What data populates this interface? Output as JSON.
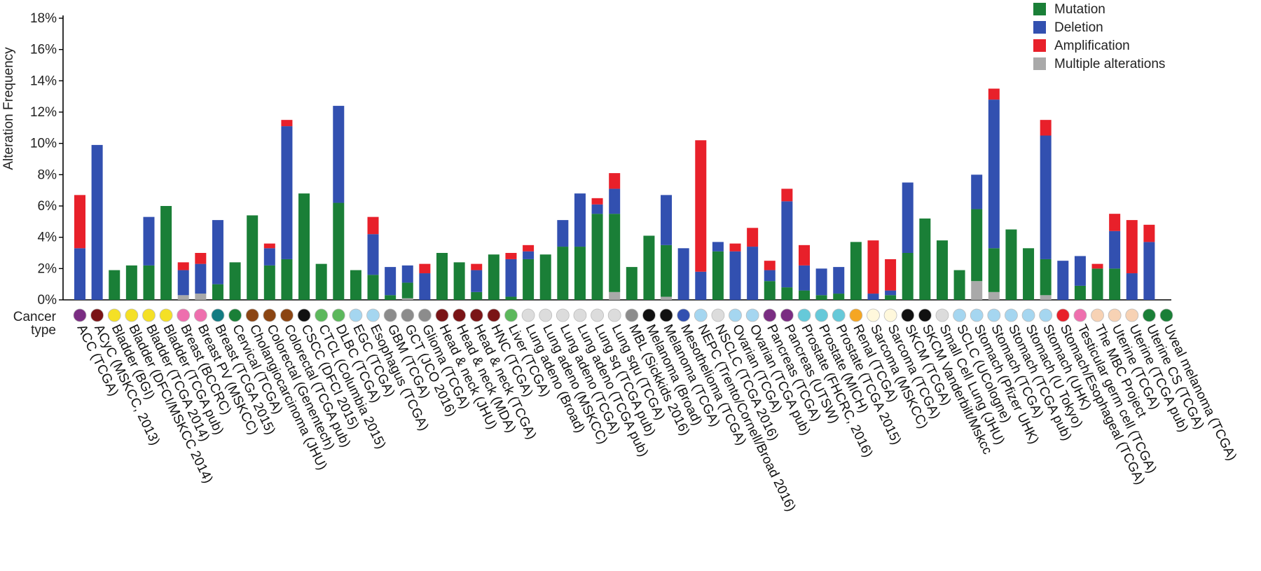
{
  "chart_data": {
    "type": "bar",
    "stacked": true,
    "ylabel": "Alteration Frequency",
    "yunit": "%",
    "ylim": [
      0,
      18
    ],
    "yticks": [
      0,
      2,
      4,
      6,
      8,
      10,
      12,
      14,
      16,
      18
    ],
    "ytick_labels": [
      "0%",
      "2%",
      "4%",
      "6%",
      "8%",
      "10%",
      "12%",
      "14%",
      "16%",
      "18%"
    ],
    "cancer_type_label": [
      "Cancer",
      "type"
    ],
    "legend_position": "top-right",
    "series": [
      {
        "name": "Mutation",
        "color": "#1a7f37"
      },
      {
        "name": "Deletion",
        "color": "#3250b0"
      },
      {
        "name": "Amplification",
        "color": "#e8202a"
      },
      {
        "name": "Multiple alterations",
        "color": "#a9a9a9"
      }
    ],
    "categories": [
      {
        "label": "ACC (TCGA)",
        "dot": "#7a2d82",
        "mutation": 0,
        "deletion": 3.3,
        "amplification": 3.4,
        "multiple": 0
      },
      {
        "label": "ACyC (MSKCC, 2013)",
        "dot": "#7a1416",
        "mutation": 0,
        "deletion": 9.9,
        "amplification": 0,
        "multiple": 0
      },
      {
        "label": "Bladder (BGI)",
        "dot": "#f4e026",
        "mutation": 1.9,
        "deletion": 0,
        "amplification": 0,
        "multiple": 0
      },
      {
        "label": "Bladder (DFCI/MSKCC 2014)",
        "dot": "#f4e026",
        "mutation": 2.2,
        "deletion": 0,
        "amplification": 0,
        "multiple": 0
      },
      {
        "label": "Bladder (TCGA 2014)",
        "dot": "#f4e026",
        "mutation": 2.2,
        "deletion": 3.1,
        "amplification": 0,
        "multiple": 0
      },
      {
        "label": "Bladder (TCGA pub)",
        "dot": "#f4e026",
        "mutation": 6.0,
        "deletion": 0,
        "amplification": 0,
        "multiple": 0
      },
      {
        "label": "Breast (BCCRC)",
        "dot": "#ee6fae",
        "mutation": 0,
        "deletion": 1.6,
        "amplification": 0.5,
        "multiple": 0.3
      },
      {
        "label": "Breast PV (MSKCC)",
        "dot": "#ee6fae",
        "mutation": 0,
        "deletion": 1.9,
        "amplification": 0.7,
        "multiple": 0.4
      },
      {
        "label": "Breast (TCGA 2015)",
        "dot": "#137b82",
        "mutation": 1.0,
        "deletion": 4.1,
        "amplification": 0,
        "multiple": 0
      },
      {
        "label": "Cervical (TCGA)",
        "dot": "#1a7f37",
        "mutation": 2.4,
        "deletion": 0,
        "amplification": 0,
        "multiple": 0
      },
      {
        "label": "Cholangiocarcinoma (JHU)",
        "dot": "#8b4513",
        "mutation": 5.4,
        "deletion": 0,
        "amplification": 0,
        "multiple": 0
      },
      {
        "label": "Colorectal (Genentech)",
        "dot": "#8b4513",
        "mutation": 2.2,
        "deletion": 1.1,
        "amplification": 0.3,
        "multiple": 0
      },
      {
        "label": "Colorectal (TCGA pub)",
        "dot": "#8b4513",
        "mutation": 2.6,
        "deletion": 8.5,
        "amplification": 0.4,
        "multiple": 0
      },
      {
        "label": "CSCC (DFCI 2015)",
        "dot": "#111111",
        "mutation": 6.8,
        "deletion": 0,
        "amplification": 0,
        "multiple": 0
      },
      {
        "label": "CTCL (Columbia 2015)",
        "dot": "#5cb85c",
        "mutation": 2.3,
        "deletion": 0,
        "amplification": 0,
        "multiple": 0
      },
      {
        "label": "DLBC (TCGA)",
        "dot": "#5cb85c",
        "mutation": 6.2,
        "deletion": 6.2,
        "amplification": 0,
        "multiple": 0
      },
      {
        "label": "EGC (TCGA)",
        "dot": "#a5d6f0",
        "mutation": 1.9,
        "deletion": 0,
        "amplification": 0,
        "multiple": 0
      },
      {
        "label": "Esophagus (TCGA)",
        "dot": "#a5d6f0",
        "mutation": 1.6,
        "deletion": 2.6,
        "amplification": 1.1,
        "multiple": 0
      },
      {
        "label": "GBM (TCGA)",
        "dot": "#8c8c8c",
        "mutation": 0.3,
        "deletion": 1.8,
        "amplification": 0,
        "multiple": 0
      },
      {
        "label": "GCT (JCO 2016)",
        "dot": "#8c8c8c",
        "mutation": 1.0,
        "deletion": 1.1,
        "amplification": 0,
        "multiple": 0.1
      },
      {
        "label": "Glioma (TCGA)",
        "dot": "#8c8c8c",
        "mutation": 0,
        "deletion": 1.7,
        "amplification": 0.6,
        "multiple": 0
      },
      {
        "label": "Head & neck (JHU)",
        "dot": "#7a1416",
        "mutation": 3.0,
        "deletion": 0,
        "amplification": 0,
        "multiple": 0
      },
      {
        "label": "Head & neck (MDA)",
        "dot": "#7a1416",
        "mutation": 2.4,
        "deletion": 0,
        "amplification": 0,
        "multiple": 0
      },
      {
        "label": "Head & neck (TCGA)",
        "dot": "#7a1416",
        "mutation": 0.5,
        "deletion": 1.4,
        "amplification": 0.4,
        "multiple": 0
      },
      {
        "label": "HNC (TCGA)",
        "dot": "#7a1416",
        "mutation": 2.9,
        "deletion": 0,
        "amplification": 0,
        "multiple": 0
      },
      {
        "label": "Liver (TCGA)",
        "dot": "#5cb85c",
        "mutation": 0.2,
        "deletion": 2.4,
        "amplification": 0.4,
        "multiple": 0
      },
      {
        "label": "Lung adeno (Broad)",
        "dot": "#dcdcdc",
        "mutation": 2.6,
        "deletion": 0.5,
        "amplification": 0.4,
        "multiple": 0
      },
      {
        "label": "Lung adeno (MSKCC)",
        "dot": "#dcdcdc",
        "mutation": 2.9,
        "deletion": 0,
        "amplification": 0,
        "multiple": 0
      },
      {
        "label": "Lung adeno (TCGA)",
        "dot": "#dcdcdc",
        "mutation": 3.4,
        "deletion": 1.7,
        "amplification": 0,
        "multiple": 0
      },
      {
        "label": "Lung adeno (TCGA pub)",
        "dot": "#dcdcdc",
        "mutation": 3.4,
        "deletion": 3.4,
        "amplification": 0,
        "multiple": 0
      },
      {
        "label": "Lung sq (TCGA pub)",
        "dot": "#dcdcdc",
        "mutation": 5.5,
        "deletion": 0.6,
        "amplification": 0.4,
        "multiple": 0
      },
      {
        "label": "Lung squ (TCGA)",
        "dot": "#dcdcdc",
        "mutation": 5.0,
        "deletion": 1.6,
        "amplification": 1.0,
        "multiple": 0.5
      },
      {
        "label": "MBL (Sickkids 2016)",
        "dot": "#8c8c8c",
        "mutation": 2.1,
        "deletion": 0,
        "amplification": 0,
        "multiple": 0
      },
      {
        "label": "Melanoma (Broad)",
        "dot": "#111111",
        "mutation": 4.1,
        "deletion": 0,
        "amplification": 0,
        "multiple": 0
      },
      {
        "label": "Melanoma (TCGA)",
        "dot": "#111111",
        "mutation": 3.3,
        "deletion": 3.2,
        "amplification": 0,
        "multiple": 0.2
      },
      {
        "label": "Mesothelioma (TCGA)",
        "dot": "#3250b0",
        "mutation": 0,
        "deletion": 3.3,
        "amplification": 0,
        "multiple": 0
      },
      {
        "label": "NEPC (Trento/Cornell/Broad 2016)",
        "dot": "#a5d6f0",
        "mutation": 0,
        "deletion": 1.8,
        "amplification": 8.4,
        "multiple": 0
      },
      {
        "label": "NSCLC (TCGA 2016)",
        "dot": "#dcdcdc",
        "mutation": 3.1,
        "deletion": 0.6,
        "amplification": 0,
        "multiple": 0
      },
      {
        "label": "Ovarian (TCGA)",
        "dot": "#a5d6f0",
        "mutation": 0,
        "deletion": 3.1,
        "amplification": 0.5,
        "multiple": 0
      },
      {
        "label": "Ovarian (TCGA pub)",
        "dot": "#a5d6f0",
        "mutation": 0,
        "deletion": 3.4,
        "amplification": 1.2,
        "multiple": 0
      },
      {
        "label": "Pancreas (TCGA)",
        "dot": "#7a2d82",
        "mutation": 1.2,
        "deletion": 0.7,
        "amplification": 0.6,
        "multiple": 0
      },
      {
        "label": "Pancreas (UTSW)",
        "dot": "#7a2d82",
        "mutation": 0.8,
        "deletion": 5.5,
        "amplification": 0.8,
        "multiple": 0
      },
      {
        "label": "Prostate (FHCRC, 2016)",
        "dot": "#66c9d9",
        "mutation": 0.6,
        "deletion": 1.6,
        "amplification": 1.3,
        "multiple": 0
      },
      {
        "label": "Prostate (MICH)",
        "dot": "#66c9d9",
        "mutation": 0.3,
        "deletion": 1.7,
        "amplification": 0,
        "multiple": 0
      },
      {
        "label": "Prostate (TCGA 2015)",
        "dot": "#66c9d9",
        "mutation": 0.4,
        "deletion": 1.7,
        "amplification": 0,
        "multiple": 0
      },
      {
        "label": "Renal (TCGA)",
        "dot": "#f5a623",
        "mutation": 3.7,
        "deletion": 0,
        "amplification": 0,
        "multiple": 0
      },
      {
        "label": "Sarcoma (MSKCC)",
        "dot": "#fff8dc",
        "mutation": 0,
        "deletion": 0.4,
        "amplification": 3.4,
        "multiple": 0
      },
      {
        "label": "Sarcoma (TCGA)",
        "dot": "#fff8dc",
        "mutation": 0.3,
        "deletion": 0.3,
        "amplification": 2.0,
        "multiple": 0
      },
      {
        "label": "SKCM (TCGA)",
        "dot": "#111111",
        "mutation": 3.0,
        "deletion": 4.5,
        "amplification": 0,
        "multiple": 0
      },
      {
        "label": "SKCM Vanderbilt/Mskcc",
        "dot": "#111111",
        "mutation": 5.2,
        "deletion": 0,
        "amplification": 0,
        "multiple": 0
      },
      {
        "label": "Small Cell Lung (JHU)",
        "dot": "#dcdcdc",
        "mutation": 3.8,
        "deletion": 0,
        "amplification": 0,
        "multiple": 0
      },
      {
        "label": "SCLC (UCologne)",
        "dot": "#a5d6f0",
        "mutation": 1.9,
        "deletion": 0,
        "amplification": 0,
        "multiple": 0
      },
      {
        "label": "Stomach (Pfizer UHK)",
        "dot": "#a5d6f0",
        "mutation": 4.6,
        "deletion": 2.2,
        "amplification": 0,
        "multiple": 1.2
      },
      {
        "label": "Stomach (TCGA)",
        "dot": "#a5d6f0",
        "mutation": 2.8,
        "deletion": 9.5,
        "amplification": 0.7,
        "multiple": 0.5
      },
      {
        "label": "Stomach (TCGA pub)",
        "dot": "#a5d6f0",
        "mutation": 4.5,
        "deletion": 0,
        "amplification": 0,
        "multiple": 0
      },
      {
        "label": "Stomach (U Tokyo)",
        "dot": "#a5d6f0",
        "mutation": 3.3,
        "deletion": 0,
        "amplification": 0,
        "multiple": 0
      },
      {
        "label": "Stomach (UHK)",
        "dot": "#a5d6f0",
        "mutation": 2.3,
        "deletion": 7.9,
        "amplification": 1.0,
        "multiple": 0.3
      },
      {
        "label": "Stomach/Esophageal (TCGA)",
        "dot": "#e8202a",
        "mutation": 0,
        "deletion": 2.5,
        "amplification": 0,
        "multiple": 0
      },
      {
        "label": "Testicular germ cell (TCGA)",
        "dot": "#ee6fae",
        "mutation": 0.9,
        "deletion": 1.9,
        "amplification": 0,
        "multiple": 0
      },
      {
        "label": "The MBC Project",
        "dot": "#f7d2b4",
        "mutation": 2.0,
        "deletion": 0,
        "amplification": 0.3,
        "multiple": 0
      },
      {
        "label": "Uterine (TCGA)",
        "dot": "#f7d2b4",
        "mutation": 2.0,
        "deletion": 2.4,
        "amplification": 1.1,
        "multiple": 0
      },
      {
        "label": "Uterine (TCGA pub)",
        "dot": "#f7d2b4",
        "mutation": 0,
        "deletion": 1.7,
        "amplification": 3.4,
        "multiple": 0
      },
      {
        "label": "Uterine CS (TCGA)",
        "dot": "#1a7f37",
        "mutation": 0,
        "deletion": 3.7,
        "amplification": 1.1,
        "multiple": 0
      },
      {
        "label": "Uveal melanoma (TCGA)",
        "dot": "#1a7f37",
        "mutation": 0,
        "deletion": 0,
        "amplification": 0,
        "multiple": 0
      }
    ]
  }
}
